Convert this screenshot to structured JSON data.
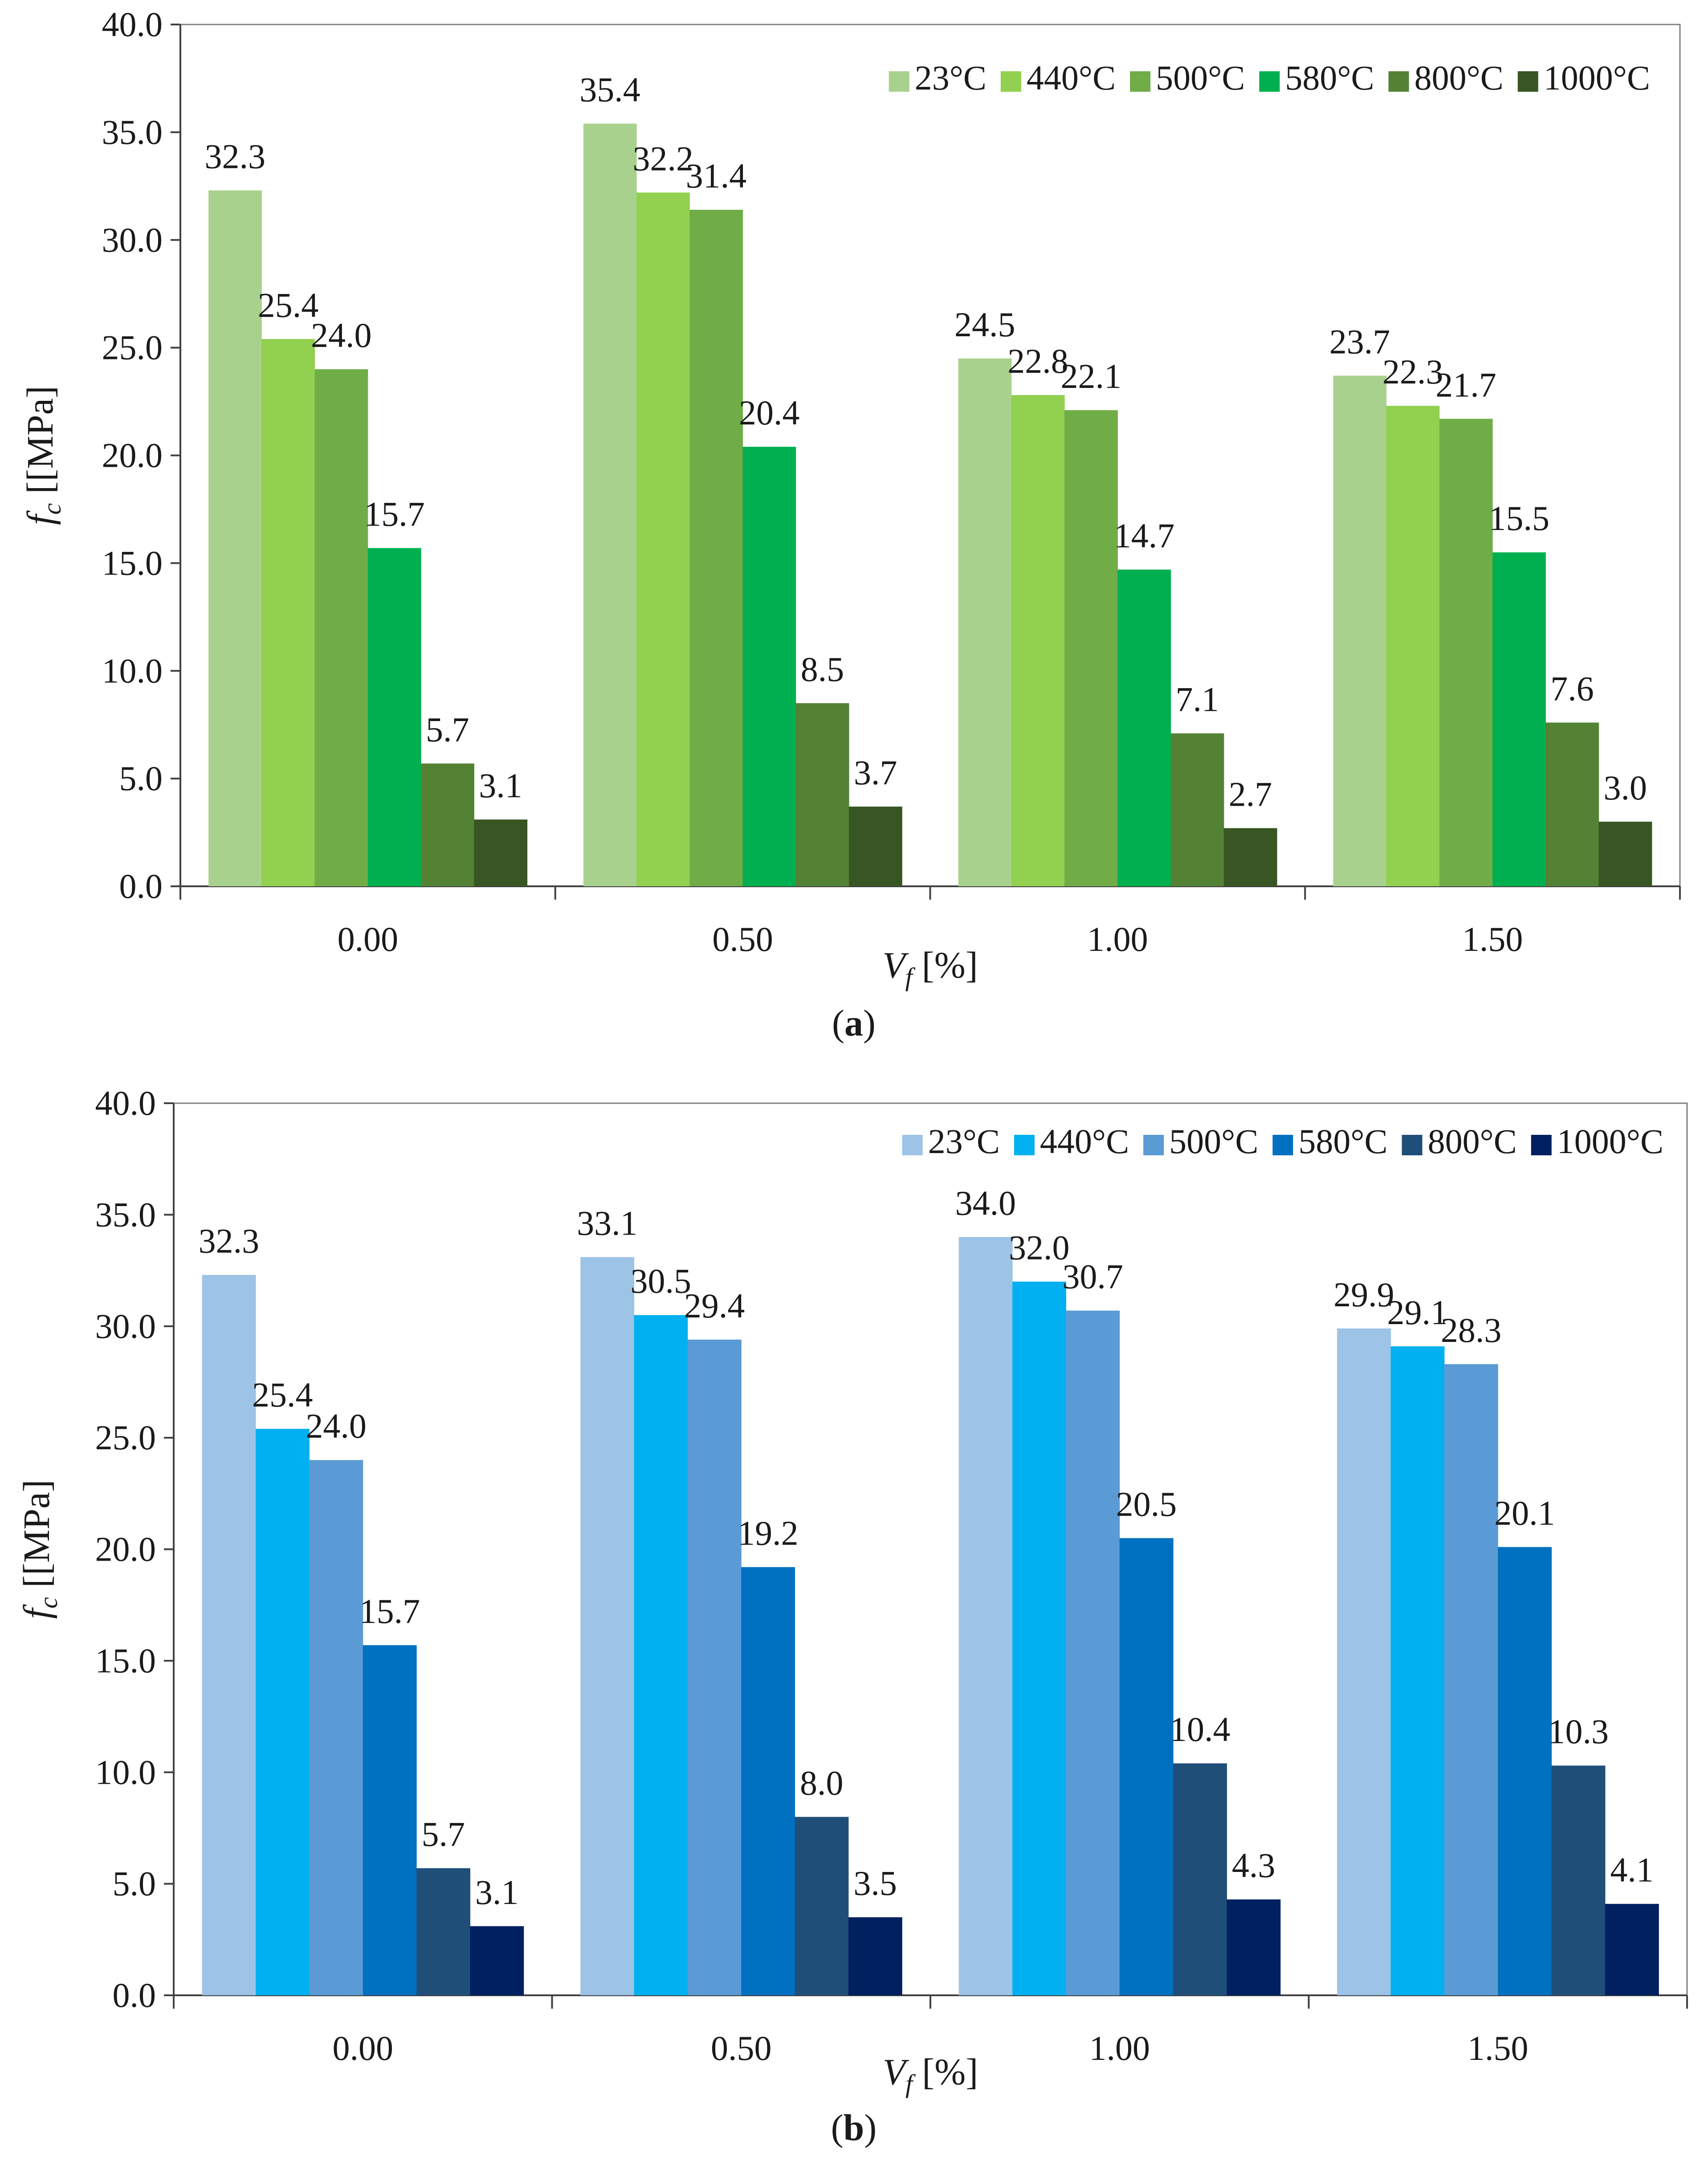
{
  "figure": {
    "panels": [
      "a",
      "b"
    ]
  },
  "chart_data": [
    {
      "id": "a",
      "type": "bar",
      "caption": "(a)",
      "caption_letter": "a",
      "title": "",
      "xlabel": "V",
      "xlabel_sub": "f",
      "xlabel_unit": " [%]",
      "ylabel": "f",
      "ylabel_sub": "c",
      "ylabel_unit": " [[MPa]",
      "ylim": [
        0,
        40
      ],
      "yticks": [
        "0.0",
        "5.0",
        "10.0",
        "15.0",
        "20.0",
        "25.0",
        "30.0",
        "35.0",
        "40.0"
      ],
      "categories": [
        "0.00",
        "0.50",
        "1.00",
        "1.50"
      ],
      "legend_position": "top-right",
      "series": [
        {
          "name": "23°C",
          "color": "#a9d18e",
          "values": [
            32.3,
            35.4,
            24.5,
            23.7
          ],
          "labels": [
            "32.3",
            "35.4",
            "24.5",
            "23.7"
          ]
        },
        {
          "name": "440°C",
          "color": "#92d050",
          "values": [
            25.4,
            32.2,
            22.8,
            22.3
          ],
          "labels": [
            "25.4",
            "32.2",
            "22.8",
            "22.3"
          ]
        },
        {
          "name": "500°C",
          "color": "#70ad47",
          "values": [
            24.0,
            31.4,
            22.1,
            21.7
          ],
          "labels": [
            "24.0",
            "31.4",
            "22.1",
            "21.7"
          ]
        },
        {
          "name": "580°C",
          "color": "#00b050",
          "values": [
            15.7,
            20.4,
            14.7,
            15.5
          ],
          "labels": [
            "15.7",
            "20.4",
            "14.7",
            "15.5"
          ]
        },
        {
          "name": "800°C",
          "color": "#548235",
          "values": [
            5.7,
            8.5,
            7.1,
            7.6
          ],
          "labels": [
            "5.7",
            "8.5",
            "7.1",
            "7.6"
          ]
        },
        {
          "name": "1000°C",
          "color": "#375623",
          "values": [
            3.1,
            3.7,
            2.7,
            3.0
          ],
          "labels": [
            "3.1",
            "3.7",
            "2.7",
            "3.0"
          ]
        }
      ]
    },
    {
      "id": "b",
      "type": "bar",
      "caption": "(b)",
      "caption_letter": "b",
      "title": "",
      "xlabel": "V",
      "xlabel_sub": "f",
      "xlabel_unit": " [%]",
      "ylabel": "f",
      "ylabel_sub": "c",
      "ylabel_unit": " [[MPa]",
      "ylim": [
        0,
        40
      ],
      "yticks": [
        "0.0",
        "5.0",
        "10.0",
        "15.0",
        "20.0",
        "25.0",
        "30.0",
        "35.0",
        "40.0"
      ],
      "categories": [
        "0.00",
        "0.50",
        "1.00",
        "1.50"
      ],
      "legend_position": "top-right",
      "series": [
        {
          "name": "23°C",
          "color": "#9dc3e6",
          "values": [
            32.3,
            33.1,
            34.0,
            29.9
          ],
          "labels": [
            "32.3",
            "33.1",
            "34.0",
            "29.9"
          ]
        },
        {
          "name": "440°C",
          "color": "#00b0f0",
          "values": [
            25.4,
            30.5,
            32.0,
            29.1
          ],
          "labels": [
            "25.4",
            "30.5",
            "32.0",
            "29.1"
          ]
        },
        {
          "name": "500°C",
          "color": "#5b9bd5",
          "values": [
            24.0,
            29.4,
            30.7,
            28.3
          ],
          "labels": [
            "24.0",
            "29.4",
            "30.7",
            "28.3"
          ]
        },
        {
          "name": "580°C",
          "color": "#0070c0",
          "values": [
            15.7,
            19.2,
            20.5,
            20.1
          ],
          "labels": [
            "15.7",
            "19.2",
            "20.5",
            "20.1"
          ]
        },
        {
          "name": "800°C",
          "color": "#1f4e79",
          "values": [
            5.7,
            8.0,
            10.4,
            10.3
          ],
          "labels": [
            "5.7",
            "8.0",
            "10.4",
            "10.3"
          ]
        },
        {
          "name": "1000°C",
          "color": "#002060",
          "values": [
            3.1,
            3.5,
            4.3,
            4.1
          ],
          "labels": [
            "3.1",
            "3.5",
            "4.3",
            "4.1"
          ]
        }
      ]
    }
  ]
}
